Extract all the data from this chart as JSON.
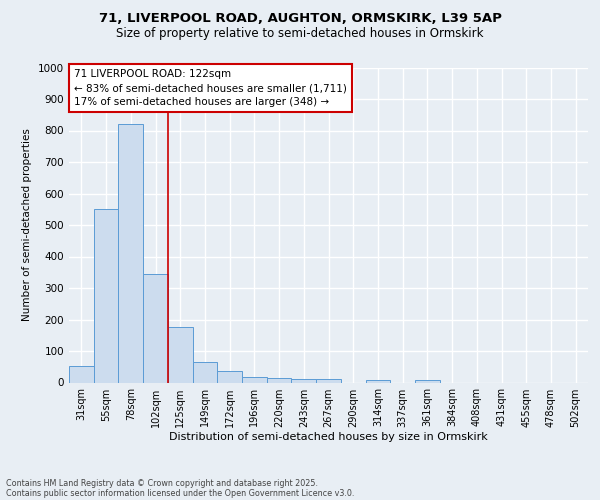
{
  "title_line1": "71, LIVERPOOL ROAD, AUGHTON, ORMSKIRK, L39 5AP",
  "title_line2": "Size of property relative to semi-detached houses in Ormskirk",
  "xlabel": "Distribution of semi-detached houses by size in Ormskirk",
  "ylabel": "Number of semi-detached properties",
  "categories": [
    "31sqm",
    "55sqm",
    "78sqm",
    "102sqm",
    "125sqm",
    "149sqm",
    "172sqm",
    "196sqm",
    "220sqm",
    "243sqm",
    "267sqm",
    "290sqm",
    "314sqm",
    "337sqm",
    "361sqm",
    "384sqm",
    "408sqm",
    "431sqm",
    "455sqm",
    "478sqm",
    "502sqm"
  ],
  "values": [
    52,
    550,
    820,
    343,
    175,
    65,
    35,
    18,
    15,
    10,
    10,
    0,
    8,
    0,
    8,
    0,
    0,
    0,
    0,
    0,
    0
  ],
  "bar_color": "#ccdcee",
  "bar_edge_color": "#5b9bd5",
  "vline_color": "#cc0000",
  "annotation_title": "71 LIVERPOOL ROAD: 122sqm",
  "annotation_line2": "← 83% of semi-detached houses are smaller (1,711)",
  "annotation_line3": "17% of semi-detached houses are larger (348) →",
  "annotation_box_color": "#cc0000",
  "ylim": [
    0,
    1000
  ],
  "yticks": [
    0,
    100,
    200,
    300,
    400,
    500,
    600,
    700,
    800,
    900,
    1000
  ],
  "footer_line1": "Contains HM Land Registry data © Crown copyright and database right 2025.",
  "footer_line2": "Contains public sector information licensed under the Open Government Licence v3.0.",
  "bg_color": "#e8eef4",
  "plot_bg_color": "#e8eef4",
  "grid_color": "#ffffff"
}
